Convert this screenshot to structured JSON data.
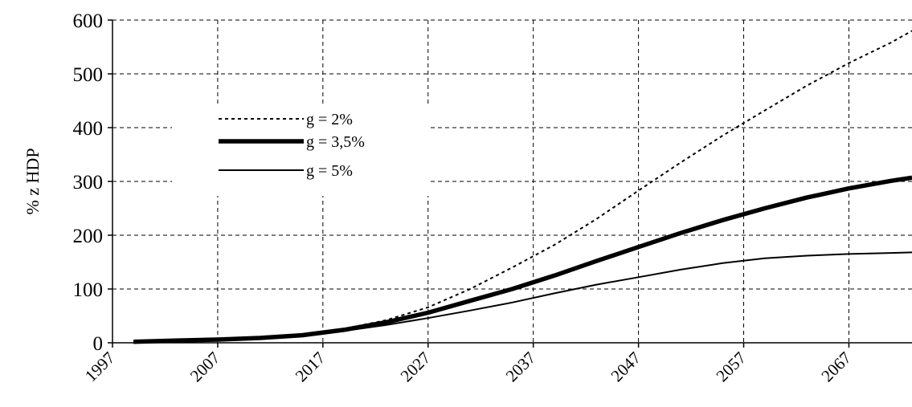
{
  "chart_data": {
    "type": "line",
    "ylabel": "% z HDP",
    "xlabel": "",
    "xlim": [
      1999,
      2073
    ],
    "ylim": [
      0,
      600
    ],
    "y_ticks": [
      0,
      100,
      200,
      300,
      400,
      500,
      600
    ],
    "x_ticks": [
      1997,
      2007,
      2017,
      2027,
      2037,
      2047,
      2057,
      2067
    ],
    "grid": true,
    "legend_position": "top-left",
    "x": [
      1999,
      2003,
      2007,
      2011,
      2015,
      2019,
      2023,
      2027,
      2031,
      2035,
      2039,
      2043,
      2047,
      2051,
      2055,
      2059,
      2063,
      2067,
      2071,
      2073
    ],
    "series": [
      {
        "name": "g = 2%",
        "style": "dotted",
        "values": [
          2,
          4,
          6,
          9,
          15,
          26,
          42,
          66,
          100,
          140,
          182,
          230,
          283,
          335,
          385,
          432,
          478,
          520,
          558,
          580
        ]
      },
      {
        "name": "g = 3,5%",
        "style": "thick",
        "values": [
          2,
          4,
          6,
          9,
          14,
          24,
          38,
          56,
          78,
          100,
          125,
          152,
          178,
          204,
          228,
          250,
          270,
          287,
          301,
          307
        ]
      },
      {
        "name": "g = 5%",
        "style": "thin",
        "values": [
          2,
          4,
          6,
          9,
          14,
          22,
          33,
          46,
          60,
          75,
          92,
          108,
          122,
          136,
          148,
          157,
          162,
          165,
          167,
          168
        ]
      }
    ]
  }
}
